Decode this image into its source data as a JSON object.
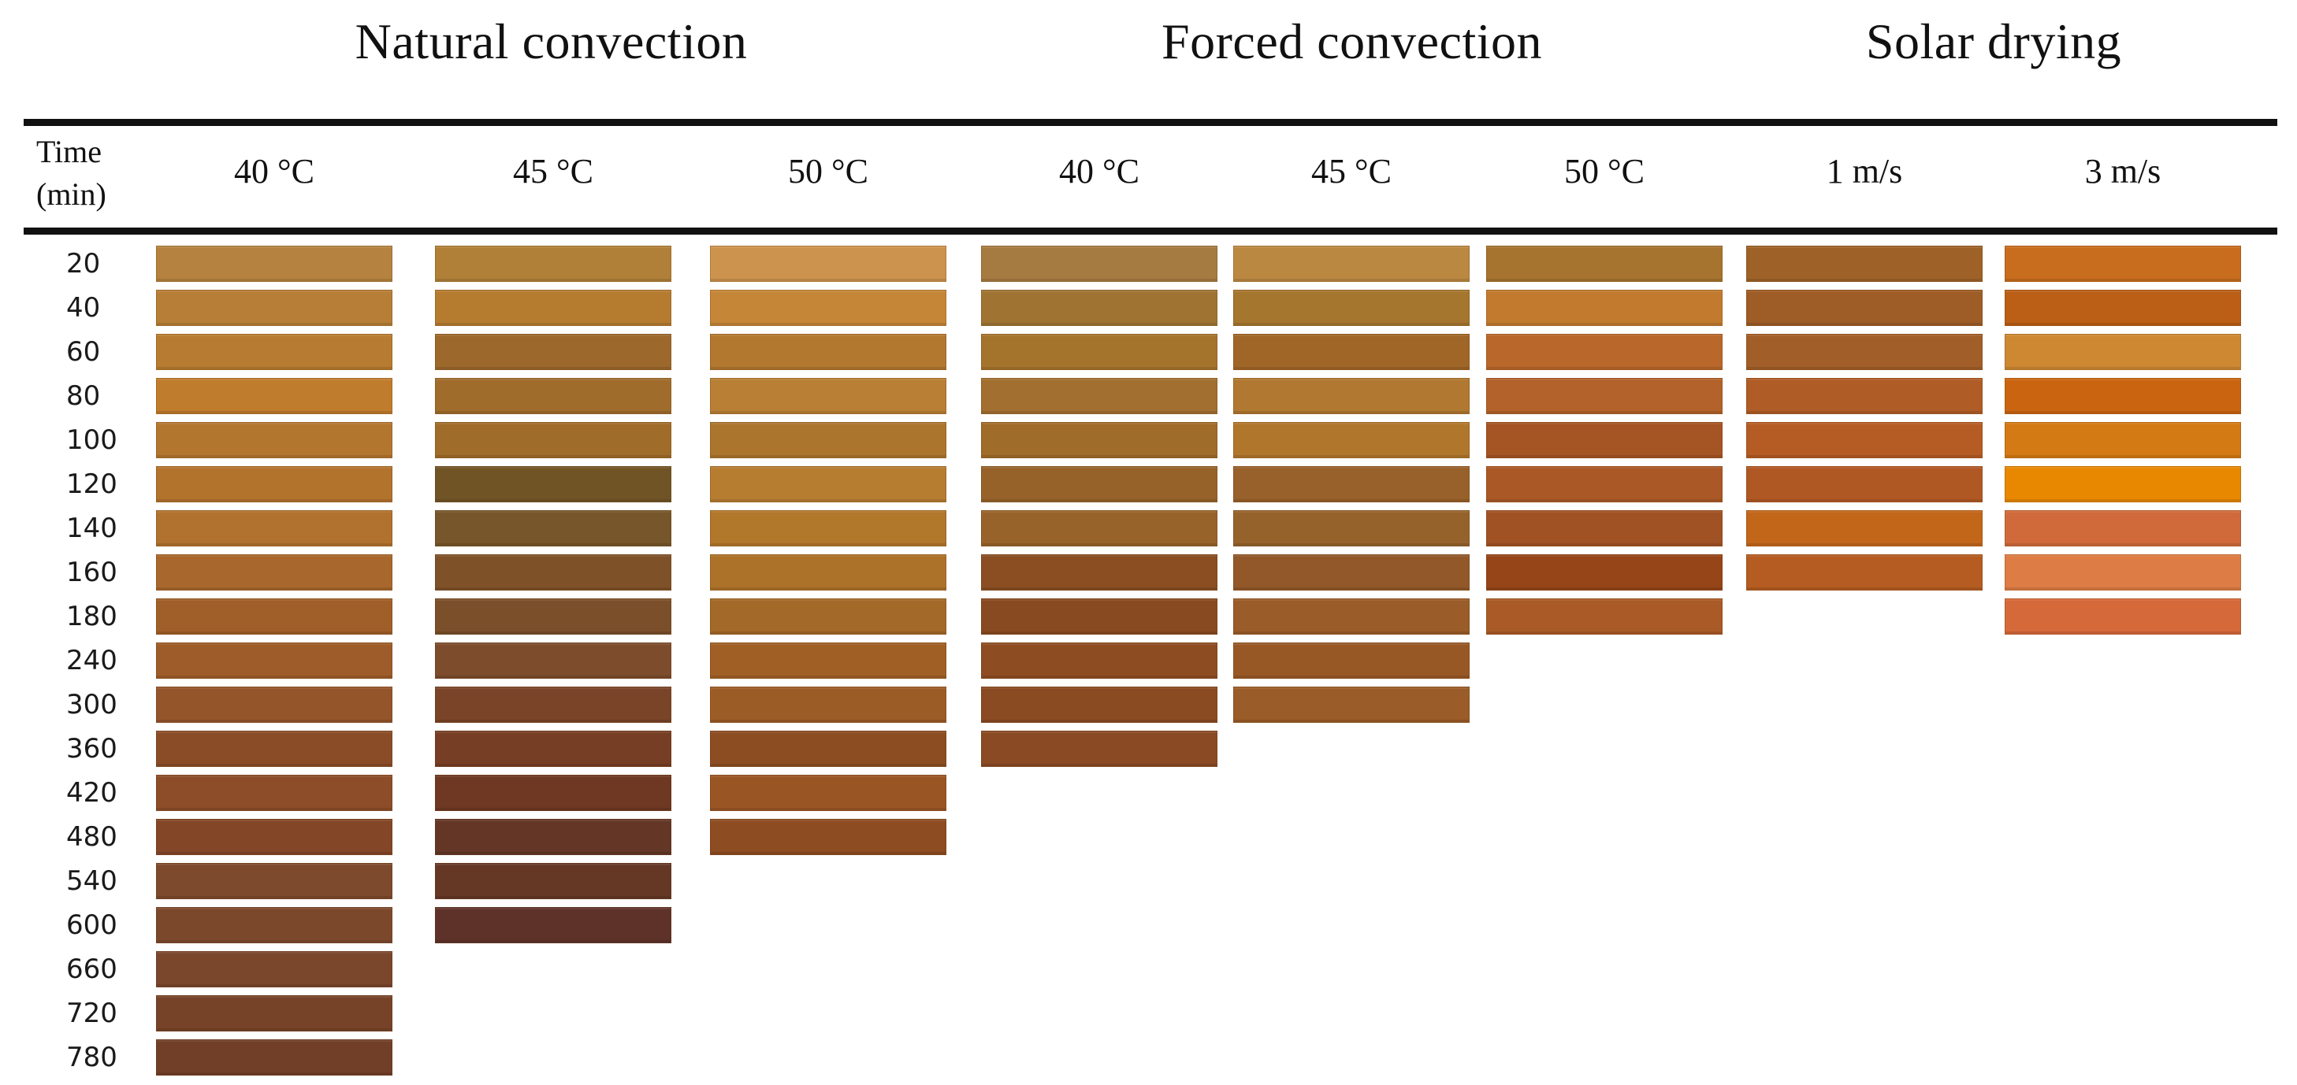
{
  "page": {
    "background": "#ffffff",
    "rule_color": "#111111"
  },
  "header": {
    "time_header_line1": "Time",
    "time_header_line2": "(min)",
    "groups": [
      {
        "label": "Natural convection",
        "col_start": 0,
        "col_end": 2
      },
      {
        "label": "Forced convection",
        "col_start": 3,
        "col_end": 5
      },
      {
        "label": "Solar drying",
        "col_start": 6,
        "col_end": 7
      }
    ]
  },
  "chart_data": {
    "type": "heatmap",
    "row_axis_label": "Time (min)",
    "rows": [
      20,
      40,
      60,
      80,
      100,
      120,
      140,
      160,
      180,
      240,
      300,
      360,
      420,
      480,
      540,
      600,
      660,
      720,
      780
    ],
    "column_groups": [
      "Natural convection",
      "Forced convection",
      "Solar drying"
    ],
    "columns": [
      {
        "group": "Natural convection",
        "label": "40 °C",
        "colors": [
          "#b5833f",
          "#b67e36",
          "#b77c31",
          "#c07c2d",
          "#b3762f",
          "#b2732d",
          "#b0722e",
          "#a8672c",
          "#a05f29",
          "#9d5c29",
          "#94552b",
          "#8a4c27",
          "#8c4d28",
          "#834627",
          "#7d4a2d",
          "#7c482c",
          "#7a462c",
          "#764329",
          "#713f28"
        ]
      },
      {
        "group": "Natural convection",
        "label": "45 °C",
        "colors": [
          "#b08038",
          "#b57c30",
          "#9c682c",
          "#a06c2c",
          "#a06c2a",
          "#715426",
          "#76562a",
          "#7e5128",
          "#7a4f2a",
          "#7c4c2c",
          "#7a4428",
          "#763e24",
          "#6e3822",
          "#633626",
          "#653826",
          "#5f3229"
        ]
      },
      {
        "group": "Natural convection",
        "label": "50 °C",
        "colors": [
          "#cc934e",
          "#c58638",
          "#b2782f",
          "#b97f35",
          "#ab752e",
          "#b67d31",
          "#b1772b",
          "#ad7229",
          "#a26929",
          "#a05f25",
          "#9c5c26",
          "#8c4d22",
          "#9a5524",
          "#8e4c22"
        ]
      },
      {
        "group": "Forced convection",
        "label": "40 °C",
        "colors": [
          "#a67b42",
          "#9f7433",
          "#a5742c",
          "#a26f30",
          "#a06c2a",
          "#96622a",
          "#97632b",
          "#8a4e22",
          "#884a20",
          "#8e4c22",
          "#8a4a22",
          "#8a4a24"
        ]
      },
      {
        "group": "Forced convection",
        "label": "45 °C",
        "colors": [
          "#bb8842",
          "#a5762e",
          "#a06628",
          "#b07830",
          "#b0772c",
          "#98602a",
          "#96622c",
          "#92582a",
          "#9a5c28",
          "#985826",
          "#9a5c28"
        ]
      },
      {
        "group": "Forced convection",
        "label": "50 °C",
        "colors": [
          "#a6742f",
          "#c17a2e",
          "#b9672a",
          "#b2622a",
          "#a55424",
          "#aa5826",
          "#a05224",
          "#964518",
          "#aa5a26"
        ]
      },
      {
        "group": "Solar drying",
        "label": "1 m/s",
        "colors": [
          "#9e6228",
          "#9e5c26",
          "#a25e28",
          "#b05c26",
          "#b55c24",
          "#b05824",
          "#c2661a",
          "#b55c22"
        ]
      },
      {
        "group": "Solar drying",
        "label": "3 m/s",
        "colors": [
          "#c86c1e",
          "#bb5e16",
          "#cd8831",
          "#ca6410",
          "#d47a14",
          "#e88700",
          "#d06a3a",
          "#dd7c44",
          "#d5693a"
        ]
      }
    ]
  }
}
